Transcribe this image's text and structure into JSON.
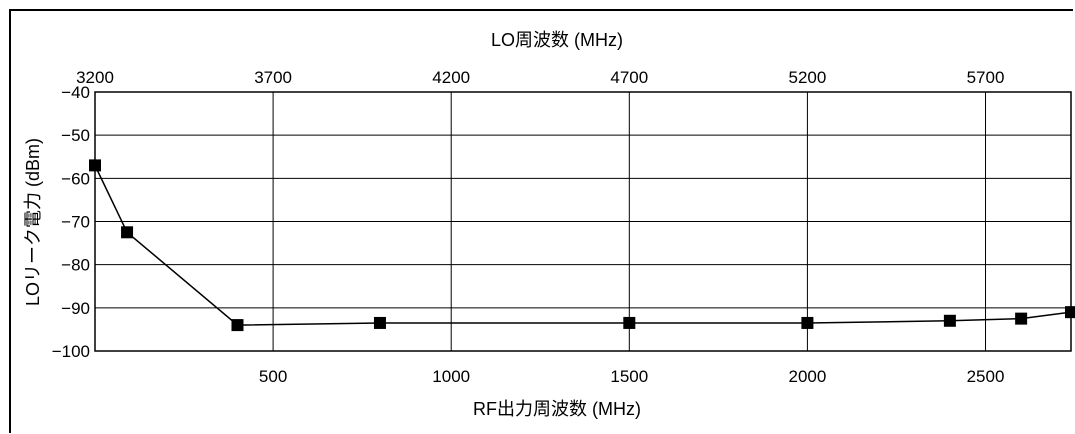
{
  "chart_data": {
    "type": "line",
    "top_axis": {
      "label": "LO周波数 (MHz)",
      "ticks": [
        "3200",
        "3700",
        "4200",
        "4700",
        "5200",
        "5700"
      ],
      "range": [
        3200,
        5940
      ]
    },
    "x_axis": {
      "label": "RF出力周波数 (MHz)",
      "ticks": [
        "500",
        "1000",
        "1500",
        "2000",
        "2500"
      ],
      "tick_values": [
        500,
        1000,
        1500,
        2000,
        2500
      ],
      "range": [
        0,
        2740
      ]
    },
    "y_axis": {
      "label": "LOリーク電力 (dBm)",
      "ticks": [
        "−40",
        "−50",
        "−60",
        "−70",
        "−80",
        "−90",
        "−100"
      ],
      "tick_values": [
        -40,
        -50,
        -60,
        -70,
        -80,
        -90,
        -100
      ],
      "range": [
        -100,
        -40
      ]
    },
    "grid": true,
    "marker": "square",
    "series": [
      {
        "x": [
          0,
          90,
          400,
          800,
          1500,
          2000,
          2400,
          2600,
          2740
        ],
        "y": [
          -57,
          -72.5,
          -94,
          -93.5,
          -93.5,
          -93.5,
          -93,
          -92.5,
          -91
        ]
      }
    ]
  }
}
